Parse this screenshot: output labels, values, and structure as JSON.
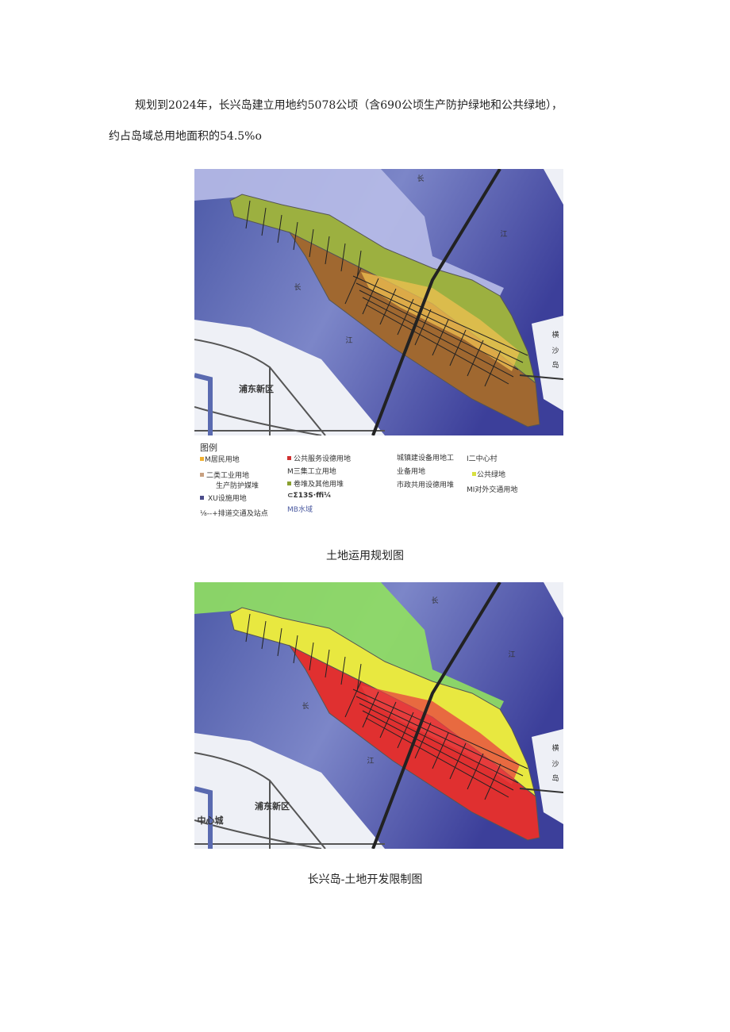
{
  "paragraph": [
    "规划到2024年，长兴岛建立用地约5078公顷（含690公顷生产防护绿地和公共绿地），",
    "约占岛域总用地面积的54.5%o"
  ],
  "figures": [
    {
      "map_labels": [
        "长",
        "江",
        "长",
        "江",
        "横",
        "沙",
        "岛",
        "浦东新区"
      ],
      "legend_title": "图例",
      "legend": [
        "M居民用地",
        "二类工业用地",
        "生产防护媒堆",
        "XU设施用地",
        "⅛--+排道交通及站点",
        "公共服务设德用地",
        "M三集工立用地",
        "卷堆及其他用堆",
        "⊂Σ13S·ffi¼",
        "MB水域",
        "城镇建设备用地工",
        "业备用地",
        "市政共用设德用堆",
        "I二中心村",
        "公共绿地",
        "MI对外交通用地"
      ],
      "caption": "土地运用规划图"
    },
    {
      "map_labels": [
        "长",
        "江",
        "长",
        "江",
        "横",
        "沙",
        "岛",
        "浦东新区",
        "中心城"
      ],
      "caption": "长兴岛-土地开发限制图"
    }
  ]
}
